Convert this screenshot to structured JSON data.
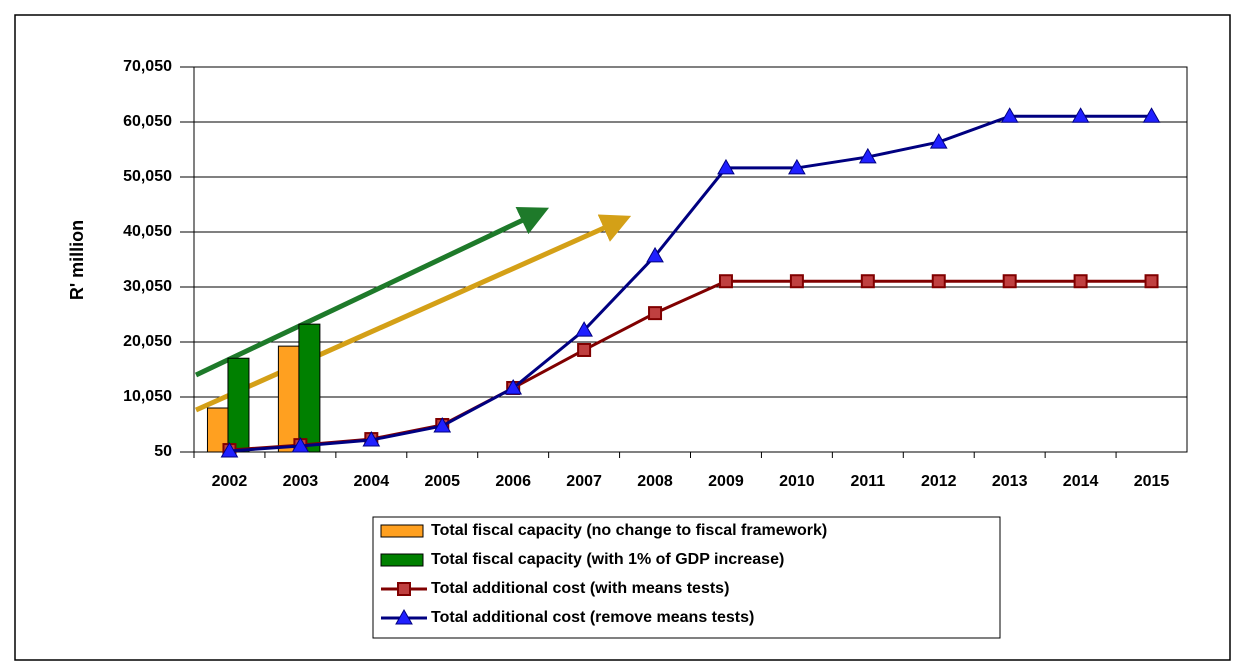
{
  "chart_data": {
    "type": "combo",
    "y_label": "R' million",
    "categories": [
      "2002",
      "2003",
      "2004",
      "2005",
      "2006",
      "2007",
      "2008",
      "2009",
      "2010",
      "2011",
      "2012",
      "2013",
      "2014",
      "2015"
    ],
    "series": [
      {
        "name": "Total fiscal capacity (no change to fiscal framework)",
        "type": "bar",
        "color": "#ffa020",
        "values": [
          8050,
          19300,
          null,
          null,
          null,
          null,
          null,
          null,
          null,
          null,
          null,
          null,
          null,
          null
        ]
      },
      {
        "name": "Total fiscal capacity (with 1% of GDP increase)",
        "type": "bar",
        "color": "#008000",
        "values": [
          17100,
          23300,
          null,
          null,
          null,
          null,
          null,
          null,
          null,
          null,
          null,
          null,
          null,
          null
        ]
      },
      {
        "name": "Total additional cost (with means tests)",
        "type": "line",
        "marker": "square",
        "color": "#800000",
        "values": [
          400,
          1300,
          2400,
          4960,
          11690,
          18600,
          25300,
          31100,
          31100,
          31100,
          31100,
          31100,
          31100,
          31100
        ]
      },
      {
        "name": "Total additional cost (remove means tests)",
        "type": "line",
        "marker": "triangle",
        "color": "#000080",
        "values": [
          230,
          1140,
          2230,
          4780,
          11690,
          22200,
          35700,
          51700,
          51700,
          53700,
          56400,
          61100,
          61100,
          61100
        ]
      }
    ],
    "ylim": [
      50,
      70050
    ],
    "yticks": [
      50,
      {
        "value": 10050,
        "label": "10,050"
      },
      {
        "value": 20050,
        "label": "20,050"
      },
      {
        "value": 30050,
        "label": "30,050"
      },
      {
        "value": 40050,
        "label": "40,050"
      },
      {
        "value": 50050,
        "label": "50,050"
      },
      {
        "value": 60050,
        "label": "60,050"
      },
      {
        "value": 70050,
        "label": "70,050"
      }
    ],
    "grid": true
  }
}
